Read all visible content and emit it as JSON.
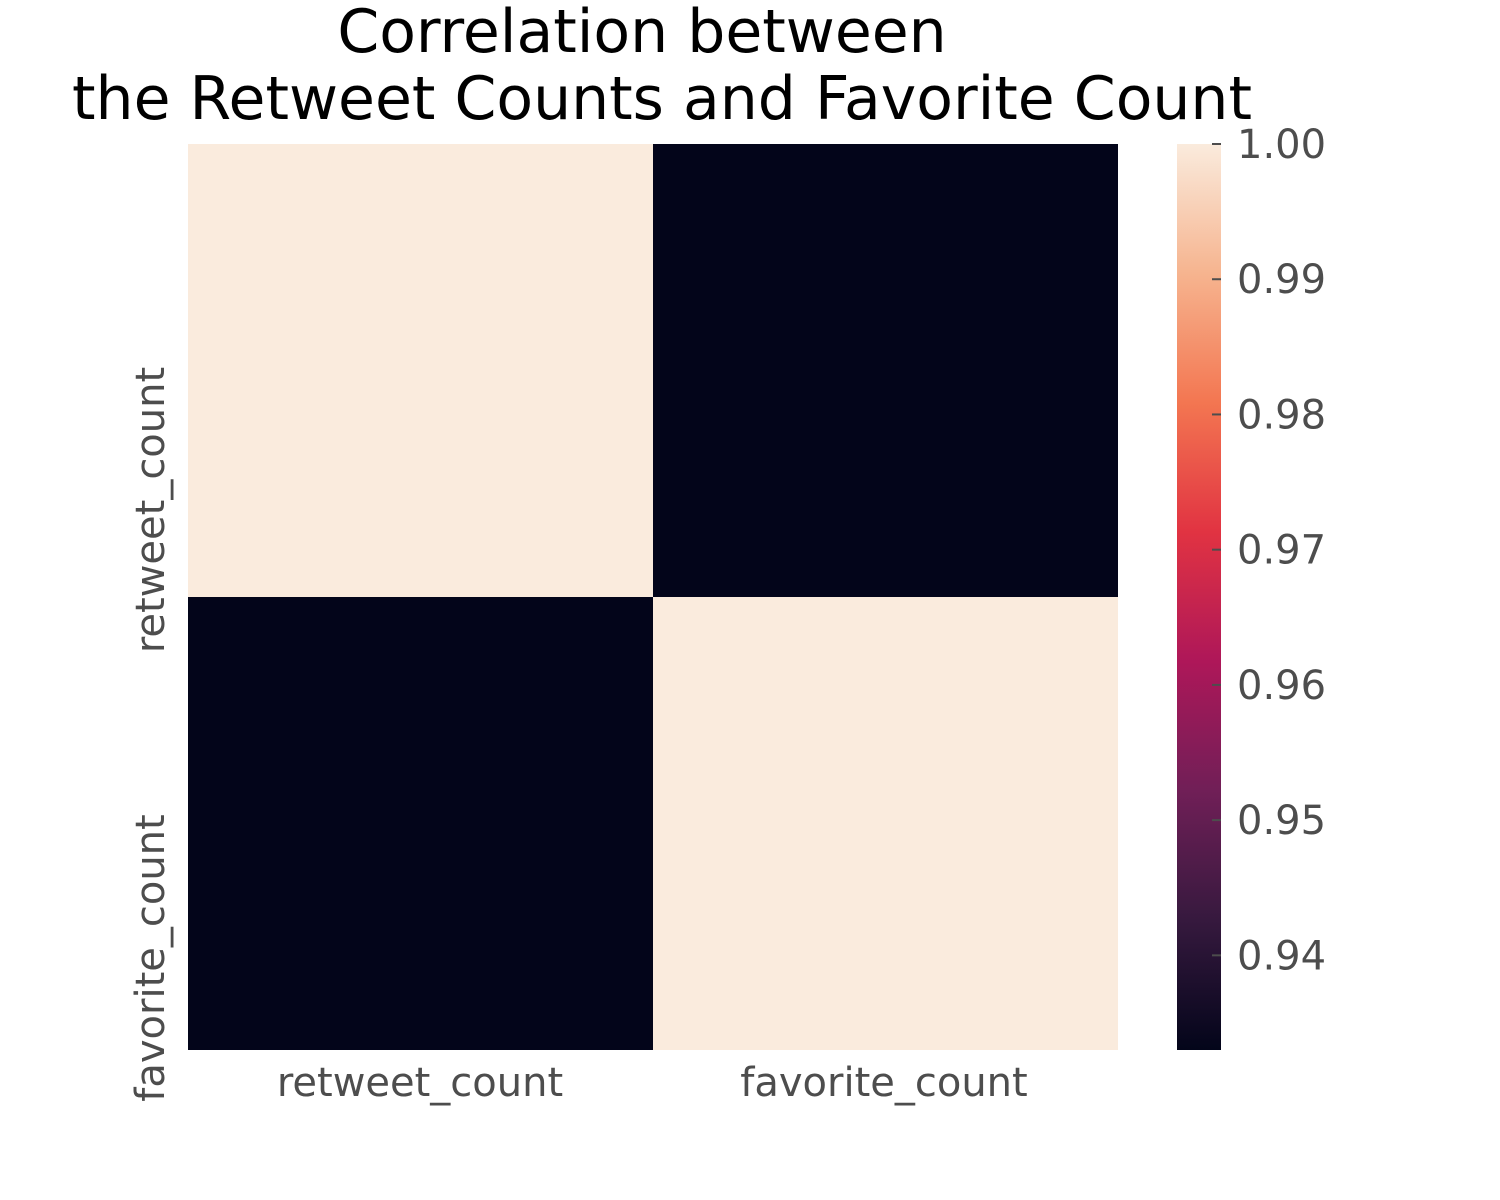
{
  "chart_data": {
    "type": "heatmap",
    "title_lines": [
      "Correlation between",
      "the Retweet Counts and Favorite Count"
    ],
    "x_labels": [
      "retweet_count",
      "favorite_count"
    ],
    "y_labels": [
      "retweet_count",
      "favorite_count"
    ],
    "values": [
      [
        1.0,
        0.933
      ],
      [
        0.933,
        1.0
      ]
    ],
    "colorbar": {
      "min": 0.933,
      "max": 1.0,
      "ticks": [
        1.0,
        0.99,
        0.98,
        0.97,
        0.96,
        0.95,
        0.94
      ],
      "tick_labels": [
        "1.00",
        "0.99",
        "0.98",
        "0.97",
        "0.96",
        "0.95",
        "0.94"
      ]
    },
    "colormap": "rocket",
    "colormap_stops": [
      "#03051a",
      "#36193e",
      "#701f57",
      "#ae1759",
      "#e13342",
      "#f37651",
      "#f6b48f",
      "#faebdd"
    ],
    "grid": false,
    "legend_placement": "right"
  }
}
